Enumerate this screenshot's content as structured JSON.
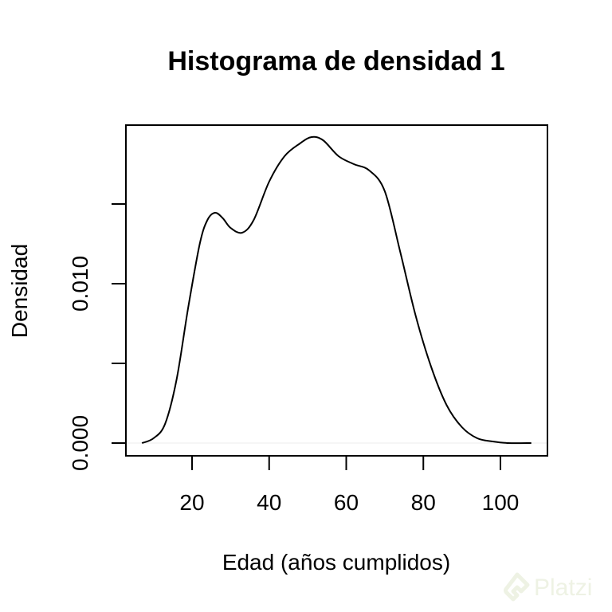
{
  "chart_data": {
    "type": "line",
    "title": "Histograma de densidad 1",
    "xlabel": "Edad (años cumplidos)",
    "ylabel": "Densidad",
    "xlim": [
      0,
      112
    ],
    "ylim": [
      -0.0007,
      0.02
    ],
    "x_ticks": [
      20,
      40,
      60,
      80,
      100
    ],
    "y_ticks": [
      0.0,
      0.005,
      0.01,
      0.015
    ],
    "y_tick_labels": [
      "0.000",
      "",
      "0.010",
      ""
    ],
    "grid": false,
    "legend": null,
    "series": [
      {
        "name": "densidad",
        "x": [
          7,
          10,
          13,
          16,
          19,
          22,
          24,
          26,
          28,
          30,
          33,
          36,
          40,
          44,
          48,
          51,
          54,
          58,
          62,
          66,
          70,
          74,
          78,
          82,
          86,
          90,
          94,
          98,
          102,
          108
        ],
        "y": [
          0.0,
          0.0003,
          0.0012,
          0.004,
          0.0085,
          0.0125,
          0.014,
          0.01445,
          0.0141,
          0.0135,
          0.0132,
          0.014,
          0.0164,
          0.018,
          0.0188,
          0.0192,
          0.019,
          0.018,
          0.0175,
          0.0171,
          0.0158,
          0.012,
          0.008,
          0.0048,
          0.0024,
          0.001,
          0.0003,
          0.0001,
          0.0,
          0.0
        ]
      }
    ]
  },
  "watermark": {
    "text": "Platzi"
  }
}
